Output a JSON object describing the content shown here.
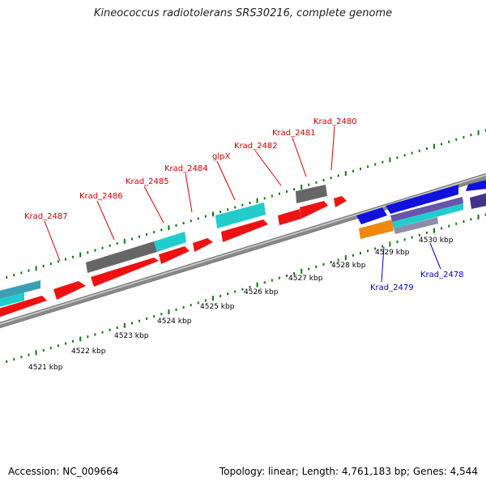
{
  "title": "Kineococcus radiotolerans SRS30216, complete genome",
  "footer": {
    "accession": "Accession: NC_009664",
    "summary": "Topology: linear; Length: 4,761,183 bp; Genes: 4,544"
  },
  "colors": {
    "forward_gene": "#ee1111",
    "reverse_gene": "#1111dd",
    "cyan_feature": "#22cccc",
    "gray_feature": "#666666",
    "orange_feature": "#ee8811",
    "tick_green": "#117711",
    "backbone": "#888888"
  },
  "scale_labels": [
    "4521 kbp",
    "4522 kbp",
    "4523 kbp",
    "4524 kbp",
    "4525 kbp",
    "4526 kbp",
    "4527 kbp",
    "4528 kbp",
    "4529 kbp",
    "4530 kbp"
  ],
  "forward_gene_labels": [
    "Krad_2487",
    "Krad_2486",
    "Krad_2485",
    "Krad_2484",
    "glpX",
    "Krad_2482",
    "Krad_2481",
    "Krad_2480"
  ],
  "reverse_gene_labels": [
    "Krad_2479",
    "Krad_2478"
  ]
}
